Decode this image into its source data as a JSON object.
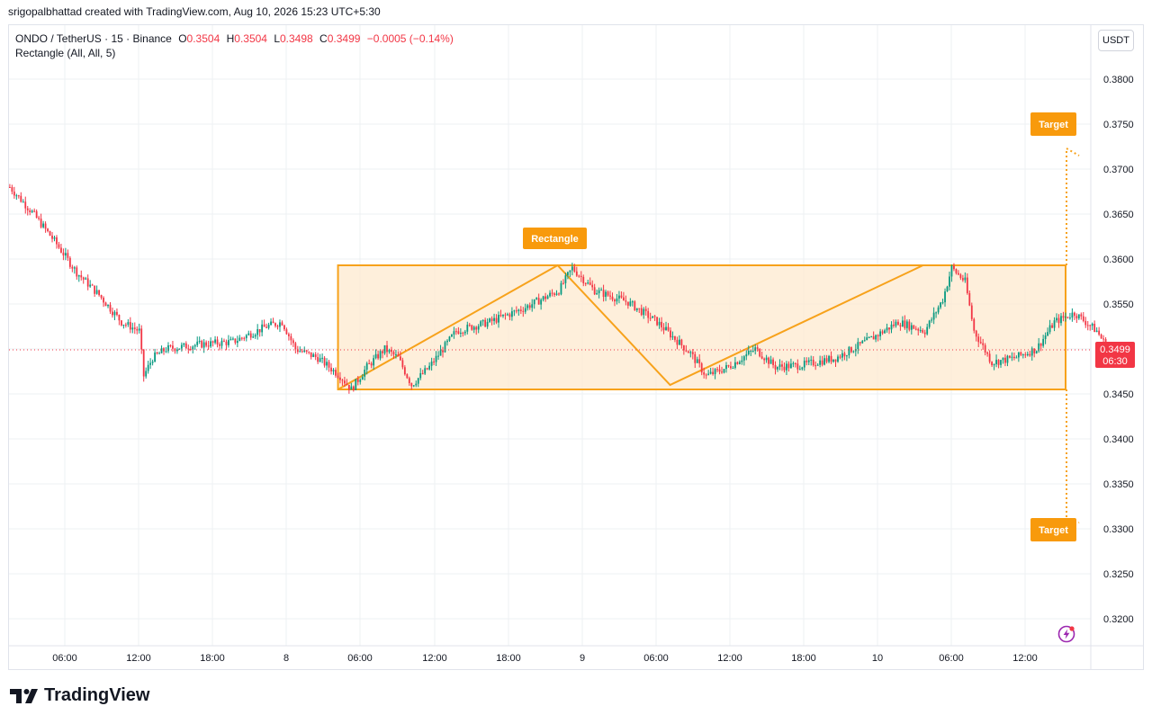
{
  "header": {
    "credit": "srigopalbhattad created with TradingView.com, Aug 10, 2026 15:23 UTC+5:30"
  },
  "legend": {
    "symbol": "ONDO / TetherUS · 15 · Binance",
    "o_label": "O",
    "o_value": "0.3504",
    "h_label": "H",
    "h_value": "0.3504",
    "l_label": "L",
    "l_value": "0.3498",
    "c_label": "C",
    "c_value": "0.3499",
    "change": "−0.0005 (−0.14%)",
    "indicator": "Rectangle (All, All, 5)"
  },
  "currency": "USDT",
  "price_tag": {
    "price": "0.3499",
    "countdown": "06:30"
  },
  "labels": {
    "rectangle": "Rectangle",
    "target_up": "Target",
    "target_down": "Target"
  },
  "footer": {
    "brand": "TradingView"
  },
  "colors": {
    "up": "#089981",
    "down": "#f23645",
    "pattern": "#f7a21b",
    "pattern_fill": "#fde9cf",
    "label_bg": "#f89a0c",
    "grid": "#eef0f3"
  },
  "chart_data": {
    "type": "candlestick",
    "y_axis": {
      "ticks": [
        "0.3800",
        "0.3750",
        "0.3700",
        "0.3650",
        "0.3600",
        "0.3550",
        "0.3500",
        "0.3450",
        "0.3400",
        "0.3350",
        "0.3300",
        "0.3250",
        "0.3200"
      ],
      "range": [
        0.3183,
        0.3827
      ]
    },
    "x_axis": {
      "ticks": [
        "06:00",
        "12:00",
        "18:00",
        "8",
        "06:00",
        "12:00",
        "18:00",
        "9",
        "06:00",
        "12:00",
        "18:00",
        "10",
        "06:00",
        "12:00"
      ]
    },
    "price_path": [
      [
        0,
        0.368
      ],
      [
        10,
        0.3652
      ],
      [
        20,
        0.362
      ],
      [
        30,
        0.3585
      ],
      [
        40,
        0.356
      ],
      [
        50,
        0.353
      ],
      [
        58,
        0.352
      ],
      [
        60,
        0.347
      ],
      [
        64,
        0.349
      ],
      [
        70,
        0.35
      ],
      [
        85,
        0.3505
      ],
      [
        100,
        0.3508
      ],
      [
        115,
        0.3525
      ],
      [
        122,
        0.353
      ],
      [
        128,
        0.35
      ],
      [
        138,
        0.349
      ],
      [
        148,
        0.347
      ],
      [
        153,
        0.3455
      ],
      [
        160,
        0.348
      ],
      [
        168,
        0.35
      ],
      [
        174,
        0.349
      ],
      [
        180,
        0.346
      ],
      [
        188,
        0.348
      ],
      [
        200,
        0.352
      ],
      [
        215,
        0.353
      ],
      [
        230,
        0.3545
      ],
      [
        246,
        0.3565
      ],
      [
        252,
        0.359
      ],
      [
        262,
        0.3565
      ],
      [
        277,
        0.3552
      ],
      [
        290,
        0.353
      ],
      [
        305,
        0.3495
      ],
      [
        312,
        0.347
      ],
      [
        322,
        0.348
      ],
      [
        334,
        0.35
      ],
      [
        343,
        0.348
      ],
      [
        355,
        0.3482
      ],
      [
        370,
        0.349
      ],
      [
        385,
        0.351
      ],
      [
        398,
        0.353
      ],
      [
        410,
        0.352
      ],
      [
        418,
        0.3555
      ],
      [
        422,
        0.359
      ],
      [
        428,
        0.3575
      ],
      [
        432,
        0.352
      ],
      [
        440,
        0.3485
      ],
      [
        450,
        0.349
      ],
      [
        460,
        0.35
      ],
      [
        468,
        0.353
      ],
      [
        477,
        0.354
      ],
      [
        487,
        0.352
      ],
      [
        492,
        0.35
      ]
    ],
    "pattern": {
      "name": "Rectangle",
      "top": 0.3593,
      "bottom": 0.3455,
      "zigzag": [
        [
          0,
          0.3455
        ],
        [
          244,
          0.3593
        ],
        [
          369,
          0.346
        ],
        [
          650,
          0.3593
        ]
      ],
      "target_up": 0.3733,
      "target_down": 0.3315
    },
    "last_price": 0.3499
  }
}
